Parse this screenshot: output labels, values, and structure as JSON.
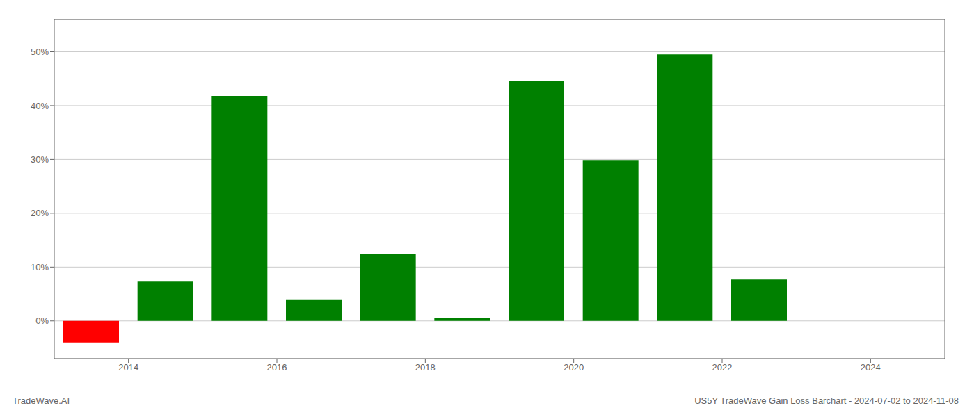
{
  "chart_data": {
    "type": "bar",
    "title": "US5Y TradeWave Gain Loss Barchart - 2024-07-02 to 2024-11-08",
    "annotations": [
      "TradeWave.AI"
    ],
    "x": [
      2013.5,
      2014.5,
      2015.5,
      2016.5,
      2017.5,
      2018.5,
      2019.5,
      2020.5,
      2021.5,
      2022.5
    ],
    "values": [
      -0.04,
      0.073,
      0.418,
      0.04,
      0.125,
      0.005,
      0.445,
      0.299,
      0.495,
      0.077
    ],
    "colors": [
      "#ff0000",
      "#008000",
      "#008000",
      "#008000",
      "#008000",
      "#008000",
      "#008000",
      "#008000",
      "#008000",
      "#008000"
    ],
    "xlim": [
      2013.0,
      2025.0
    ],
    "xticks": [
      2014,
      2016,
      2018,
      2020,
      2022,
      2024
    ],
    "ylim": [
      -0.07,
      0.56
    ],
    "yticks": [
      {
        "value": 0,
        "label": "0%"
      },
      {
        "value": 0.1,
        "label": "10%"
      },
      {
        "value": 0.2,
        "label": "20%"
      },
      {
        "value": 0.3,
        "label": "30%"
      },
      {
        "value": 0.4,
        "label": "40%"
      },
      {
        "value": 0.5,
        "label": "50%"
      }
    ],
    "grid": true
  }
}
